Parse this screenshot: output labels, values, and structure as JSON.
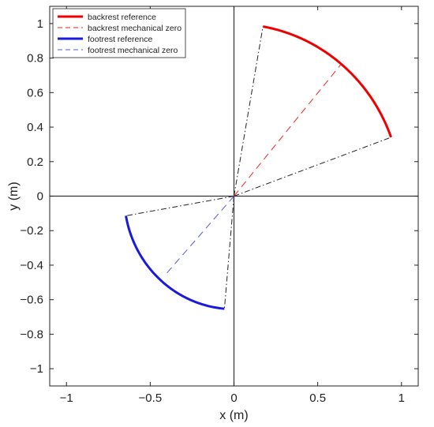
{
  "chart_data": {
    "type": "line",
    "title": "",
    "xlabel": "x (m)",
    "ylabel": "y (m)",
    "xlim": [
      -1.1,
      1.1
    ],
    "ylim": [
      -1.1,
      1.1
    ],
    "xticks": [
      -1,
      -0.5,
      0,
      0.5,
      1
    ],
    "xtick_labels": [
      "−1",
      "−0.5",
      "0",
      "0.5",
      "1"
    ],
    "yticks": [
      -1,
      -0.8,
      -0.6,
      -0.4,
      -0.2,
      0,
      0.2,
      0.4,
      0.6,
      0.8,
      1
    ],
    "ytick_labels": [
      "−1",
      "−0.8",
      "−0.6",
      "−0.4",
      "−0.2",
      "0",
      "0.2",
      "0.4",
      "0.6",
      "0.8",
      "1"
    ],
    "grid": false,
    "legend_position": "top-left",
    "axes_lines": [
      {
        "type": "vertical",
        "x": 0,
        "color": "#333333"
      },
      {
        "type": "horizontal",
        "y": 0,
        "color": "#333333"
      }
    ],
    "series": [
      {
        "name": "backrest reference",
        "style": "solid",
        "color": "#ee0000",
        "width": "thick",
        "arc": {
          "radius": 0.998,
          "start_deg": 20,
          "end_deg": 80
        }
      },
      {
        "name": "backrest mechanical zero",
        "style": "dashed",
        "color": "#ee2222",
        "x": [
          0,
          0.64
        ],
        "y": [
          0,
          0.765
        ]
      },
      {
        "name": "footrest reference",
        "style": "solid",
        "color": "#1a1adc",
        "width": "thick",
        "arc": {
          "radius": 0.655,
          "start_deg": 190,
          "end_deg": 265
        }
      },
      {
        "name": "footrest mechanical zero",
        "style": "dashed",
        "color": "#5555dd",
        "x": [
          0,
          -0.4
        ],
        "y": [
          0,
          -0.445
        ]
      }
    ],
    "guide_lines": [
      {
        "style": "dashdot",
        "color": "#222222",
        "x": [
          0,
          0.173
        ],
        "y": [
          0,
          0.983
        ]
      },
      {
        "style": "dashdot",
        "color": "#222222",
        "x": [
          0,
          0.938
        ],
        "y": [
          0,
          0.341
        ]
      },
      {
        "style": "dashdot",
        "color": "#222222",
        "x": [
          0,
          -0.645
        ],
        "y": [
          0,
          -0.114
        ]
      },
      {
        "style": "dashdot",
        "color": "#222222",
        "x": [
          0,
          -0.057
        ],
        "y": [
          0,
          -0.653
        ]
      }
    ]
  }
}
